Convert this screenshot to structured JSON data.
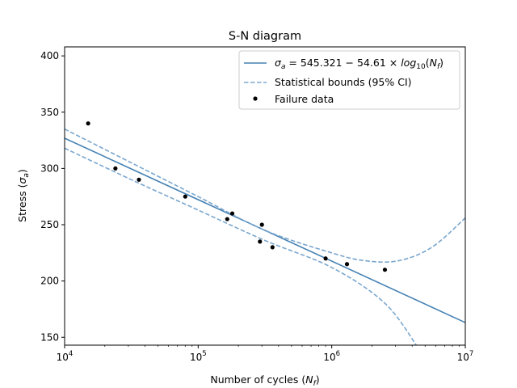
{
  "chart_data": {
    "type": "scatter",
    "title": "S-N diagram",
    "xlabel": "Number of cycles",
    "xlabel_symbol": "N",
    "xlabel_subscript": "f",
    "ylabel": "Stress",
    "ylabel_symbol": "σ",
    "ylabel_subscript": "a",
    "x_scale": "log",
    "xlim": [
      10000,
      10000000
    ],
    "ylim": [
      143,
      408
    ],
    "x_ticks": [
      {
        "value": 10000,
        "base": "10",
        "exp": "4"
      },
      {
        "value": 100000,
        "base": "10",
        "exp": "5"
      },
      {
        "value": 1000000,
        "base": "10",
        "exp": "6"
      },
      {
        "value": 10000000,
        "base": "10",
        "exp": "7"
      }
    ],
    "y_ticks": [
      150,
      200,
      250,
      300,
      350,
      400
    ],
    "grid": false,
    "legend_position": "top-right",
    "fit": {
      "intercept": 545.321,
      "slope": -54.61,
      "color": "#4682b4",
      "legend": {
        "sigma": "σ",
        "sub_a": "a",
        "eq": " = 545.321 − 54.61 × ",
        "log": "log",
        "log_sub": "10",
        "arg_open": "(",
        "N": "N",
        "sub_f": "f",
        "arg_close": ")"
      }
    },
    "bounds": {
      "label": "Statistical bounds (95% CI)",
      "color": "#7ba7cf",
      "upper": [
        [
          10000,
          335
        ],
        [
          31623,
          305
        ],
        [
          100000,
          275
        ],
        [
          316228,
          245
        ],
        [
          1000000,
          225
        ],
        [
          1778279,
          218
        ],
        [
          3162278,
          218
        ],
        [
          5623413,
          230
        ],
        [
          10000000,
          256
        ]
      ],
      "lower": [
        [
          10000,
          318
        ],
        [
          31623,
          290
        ],
        [
          100000,
          263
        ],
        [
          316228,
          236
        ],
        [
          1000000,
          212
        ],
        [
          2511886,
          180
        ],
        [
          4466836,
          140
        ]
      ]
    },
    "series": [
      {
        "name": "Failure data",
        "marker_color": "#000000",
        "points": [
          [
            15000,
            340
          ],
          [
            24000,
            300
          ],
          [
            36000,
            290
          ],
          [
            80000,
            275
          ],
          [
            165000,
            255
          ],
          [
            180000,
            260
          ],
          [
            290000,
            235
          ],
          [
            300000,
            250
          ],
          [
            360000,
            230
          ],
          [
            900000,
            220
          ],
          [
            1300000,
            215
          ],
          [
            2500000,
            210
          ]
        ]
      }
    ]
  }
}
